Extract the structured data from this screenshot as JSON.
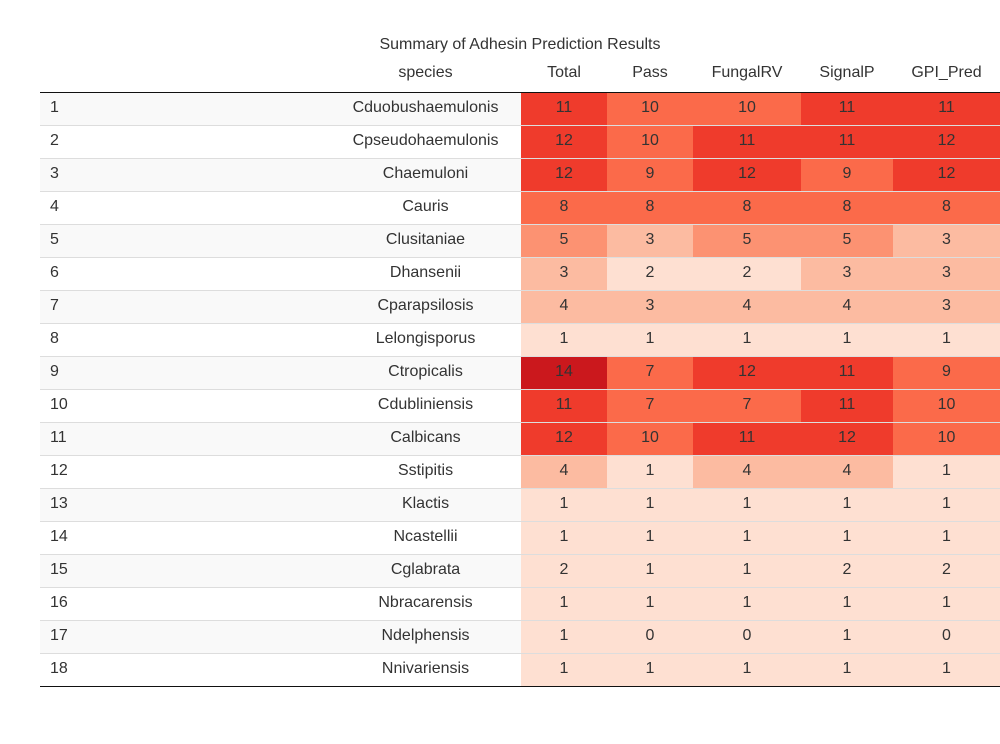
{
  "table": {
    "caption": "Summary of Adhesin Prediction Results",
    "columns": [
      "species",
      "Total",
      "Pass",
      "FungalRV",
      "SignalP",
      "GPI_Pred"
    ],
    "rows": [
      {
        "idx": "1",
        "species": "Cduobushaemulonis",
        "values": [
          "11",
          "10",
          "10",
          "11",
          "11"
        ]
      },
      {
        "idx": "2",
        "species": "Cpseudohaemulonis",
        "values": [
          "12",
          "10",
          "11",
          "11",
          "12"
        ]
      },
      {
        "idx": "3",
        "species": "Chaemuloni",
        "values": [
          "12",
          "9",
          "12",
          "9",
          "12"
        ]
      },
      {
        "idx": "4",
        "species": "Cauris",
        "values": [
          "8",
          "8",
          "8",
          "8",
          "8"
        ]
      },
      {
        "idx": "5",
        "species": "Clusitaniae",
        "values": [
          "5",
          "3",
          "5",
          "5",
          "3"
        ]
      },
      {
        "idx": "6",
        "species": "Dhansenii",
        "values": [
          "3",
          "2",
          "2",
          "3",
          "3"
        ]
      },
      {
        "idx": "7",
        "species": "Cparapsilosis",
        "values": [
          "4",
          "3",
          "4",
          "4",
          "3"
        ]
      },
      {
        "idx": "8",
        "species": "Lelongisporus",
        "values": [
          "1",
          "1",
          "1",
          "1",
          "1"
        ]
      },
      {
        "idx": "9",
        "species": "Ctropicalis",
        "values": [
          "14",
          "7",
          "12",
          "11",
          "9"
        ]
      },
      {
        "idx": "10",
        "species": "Cdubliniensis",
        "values": [
          "11",
          "7",
          "7",
          "11",
          "10"
        ]
      },
      {
        "idx": "11",
        "species": "Calbicans",
        "values": [
          "12",
          "10",
          "11",
          "12",
          "10"
        ]
      },
      {
        "idx": "12",
        "species": "Sstipitis",
        "values": [
          "4",
          "1",
          "4",
          "4",
          "1"
        ]
      },
      {
        "idx": "13",
        "species": "Klactis",
        "values": [
          "1",
          "1",
          "1",
          "1",
          "1"
        ]
      },
      {
        "idx": "14",
        "species": "Ncastellii",
        "values": [
          "1",
          "1",
          "1",
          "1",
          "1"
        ]
      },
      {
        "idx": "15",
        "species": "Cglabrata",
        "values": [
          "2",
          "1",
          "1",
          "2",
          "2"
        ]
      },
      {
        "idx": "16",
        "species": "Nbracarensis",
        "values": [
          "1",
          "1",
          "1",
          "1",
          "1"
        ]
      },
      {
        "idx": "17",
        "species": "Ndelphensis",
        "values": [
          "1",
          "0",
          "0",
          "1",
          "0"
        ]
      },
      {
        "idx": "18",
        "species": "Nnivariensis",
        "values": [
          "1",
          "1",
          "1",
          "1",
          "1"
        ]
      }
    ]
  },
  "colors": {
    "heat_scale": [
      "#fee0d2",
      "#fcbba1",
      "#fc9272",
      "#fb6a4a",
      "#ef3b2c",
      "#cb181d"
    ],
    "border": "#111111",
    "row_stripe": "#f9f9f9"
  }
}
